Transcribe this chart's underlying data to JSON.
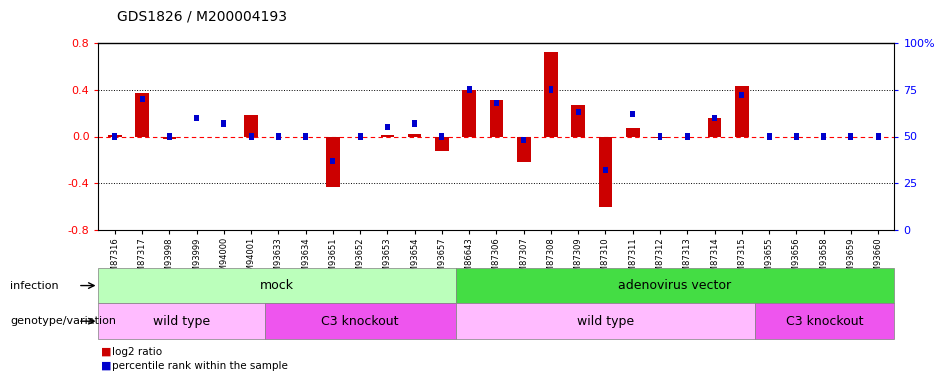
{
  "title": "GDS1826 / M200004193",
  "samples": [
    "GSM87316",
    "GSM87317",
    "GSM93998",
    "GSM93999",
    "GSM94000",
    "GSM94001",
    "GSM93633",
    "GSM93634",
    "GSM93651",
    "GSM93652",
    "GSM93653",
    "GSM93654",
    "GSM93657",
    "GSM86643",
    "GSM87306",
    "GSM87307",
    "GSM87308",
    "GSM87309",
    "GSM87310",
    "GSM87311",
    "GSM87312",
    "GSM87313",
    "GSM87314",
    "GSM87315",
    "GSM93655",
    "GSM93656",
    "GSM93658",
    "GSM93659",
    "GSM93660"
  ],
  "log2_ratio": [
    0.01,
    0.37,
    -0.02,
    0.0,
    0.0,
    0.18,
    0.0,
    0.0,
    -0.43,
    0.0,
    0.01,
    0.02,
    -0.12,
    0.4,
    0.31,
    -0.22,
    0.72,
    0.27,
    -0.6,
    0.07,
    -0.01,
    0.0,
    0.16,
    0.43,
    0.0,
    0.0,
    0.0,
    0.0,
    0.0
  ],
  "percentile": [
    50,
    70,
    50,
    60,
    57,
    50,
    50,
    50,
    37,
    50,
    55,
    57,
    50,
    75,
    68,
    48,
    75,
    63,
    32,
    62,
    50,
    50,
    60,
    72,
    50,
    50,
    50,
    50,
    50
  ],
  "ylim": [
    -0.8,
    0.8
  ],
  "yticks_left": [
    -0.8,
    -0.4,
    0.0,
    0.4,
    0.8
  ],
  "yticks_right": [
    0,
    25,
    50,
    75,
    100
  ],
  "bar_color": "#cc0000",
  "pct_color": "#0000cc",
  "infection_mock_label": "mock",
  "infection_adv_label": "adenovirus vector",
  "infection_mock_color": "#bbffbb",
  "infection_adv_color": "#44dd44",
  "genotype_wt_label": "wild type",
  "genotype_c3ko_label": "C3 knockout",
  "genotype_wt_color": "#ffbbff",
  "genotype_c3ko_color": "#ee55ee",
  "legend_log2": "log2 ratio",
  "legend_pct": "percentile rank within the sample",
  "infection_label": "infection",
  "genotype_label": "genotype/variation"
}
